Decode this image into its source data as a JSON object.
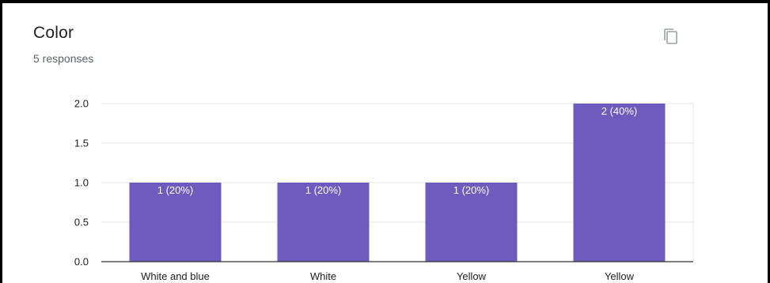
{
  "card": {
    "title": "Color",
    "responses": "5 responses",
    "copy_icon": "copy-icon"
  },
  "colors": {
    "bar": "#6f5bbd",
    "grid": "#e6e6e6",
    "axis": "#333333"
  },
  "chart_data": {
    "type": "bar",
    "categories": [
      "White and blue",
      "White",
      "Yellow",
      "Yellow"
    ],
    "values": [
      1,
      1,
      1,
      2
    ],
    "data_labels": [
      "1 (20%)",
      "1 (20%)",
      "1 (20%)",
      "2 (40%)"
    ],
    "yticks": [
      "0.0",
      "0.5",
      "1.0",
      "1.5",
      "2.0"
    ],
    "ylim": [
      0,
      2
    ],
    "grid": true,
    "xlabel": "",
    "ylabel": ""
  }
}
